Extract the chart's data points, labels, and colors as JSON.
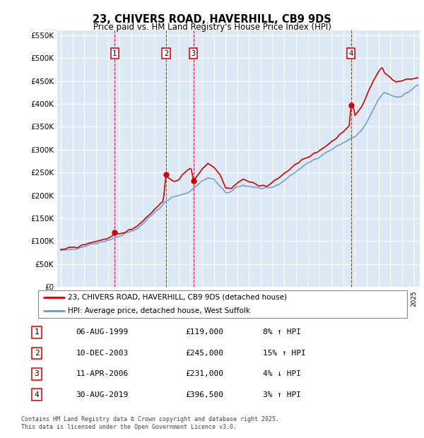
{
  "title": "23, CHIVERS ROAD, HAVERHILL, CB9 9DS",
  "subtitle": "Price paid vs. HM Land Registry's House Price Index (HPI)",
  "ylim": [
    0,
    560000
  ],
  "yticks": [
    0,
    50000,
    100000,
    150000,
    200000,
    250000,
    300000,
    350000,
    400000,
    450000,
    500000,
    550000
  ],
  "xlim_start": 1994.7,
  "xlim_end": 2025.5,
  "plot_bg": "#dce9f5",
  "grid_color": "#ffffff",
  "sale_markers": [
    {
      "year": 1999.58,
      "price": 119000,
      "label": "1"
    },
    {
      "year": 2003.94,
      "price": 245000,
      "label": "2"
    },
    {
      "year": 2006.27,
      "price": 231000,
      "label": "3"
    },
    {
      "year": 2019.66,
      "price": 396500,
      "label": "4"
    }
  ],
  "legend_entries": [
    {
      "label": "23, CHIVERS ROAD, HAVERHILL, CB9 9DS (detached house)",
      "color": "#cc0000"
    },
    {
      "label": "HPI: Average price, detached house, West Suffolk",
      "color": "#6699cc"
    }
  ],
  "table_rows": [
    {
      "num": "1",
      "date": "06-AUG-1999",
      "price": "£119,000",
      "hpi": "8% ↑ HPI"
    },
    {
      "num": "2",
      "date": "10-DEC-2003",
      "price": "£245,000",
      "hpi": "15% ↑ HPI"
    },
    {
      "num": "3",
      "date": "11-APR-2006",
      "price": "£231,000",
      "hpi": "4% ↓ HPI"
    },
    {
      "num": "4",
      "date": "30-AUG-2019",
      "price": "£396,500",
      "hpi": "3% ↑ HPI"
    }
  ],
  "footer": "Contains HM Land Registry data © Crown copyright and database right 2025.\nThis data is licensed under the Open Government Licence v3.0.",
  "hpi_color": "#6699cc",
  "sale_color": "#cc0000",
  "marker_vline_color": "#cc0000"
}
